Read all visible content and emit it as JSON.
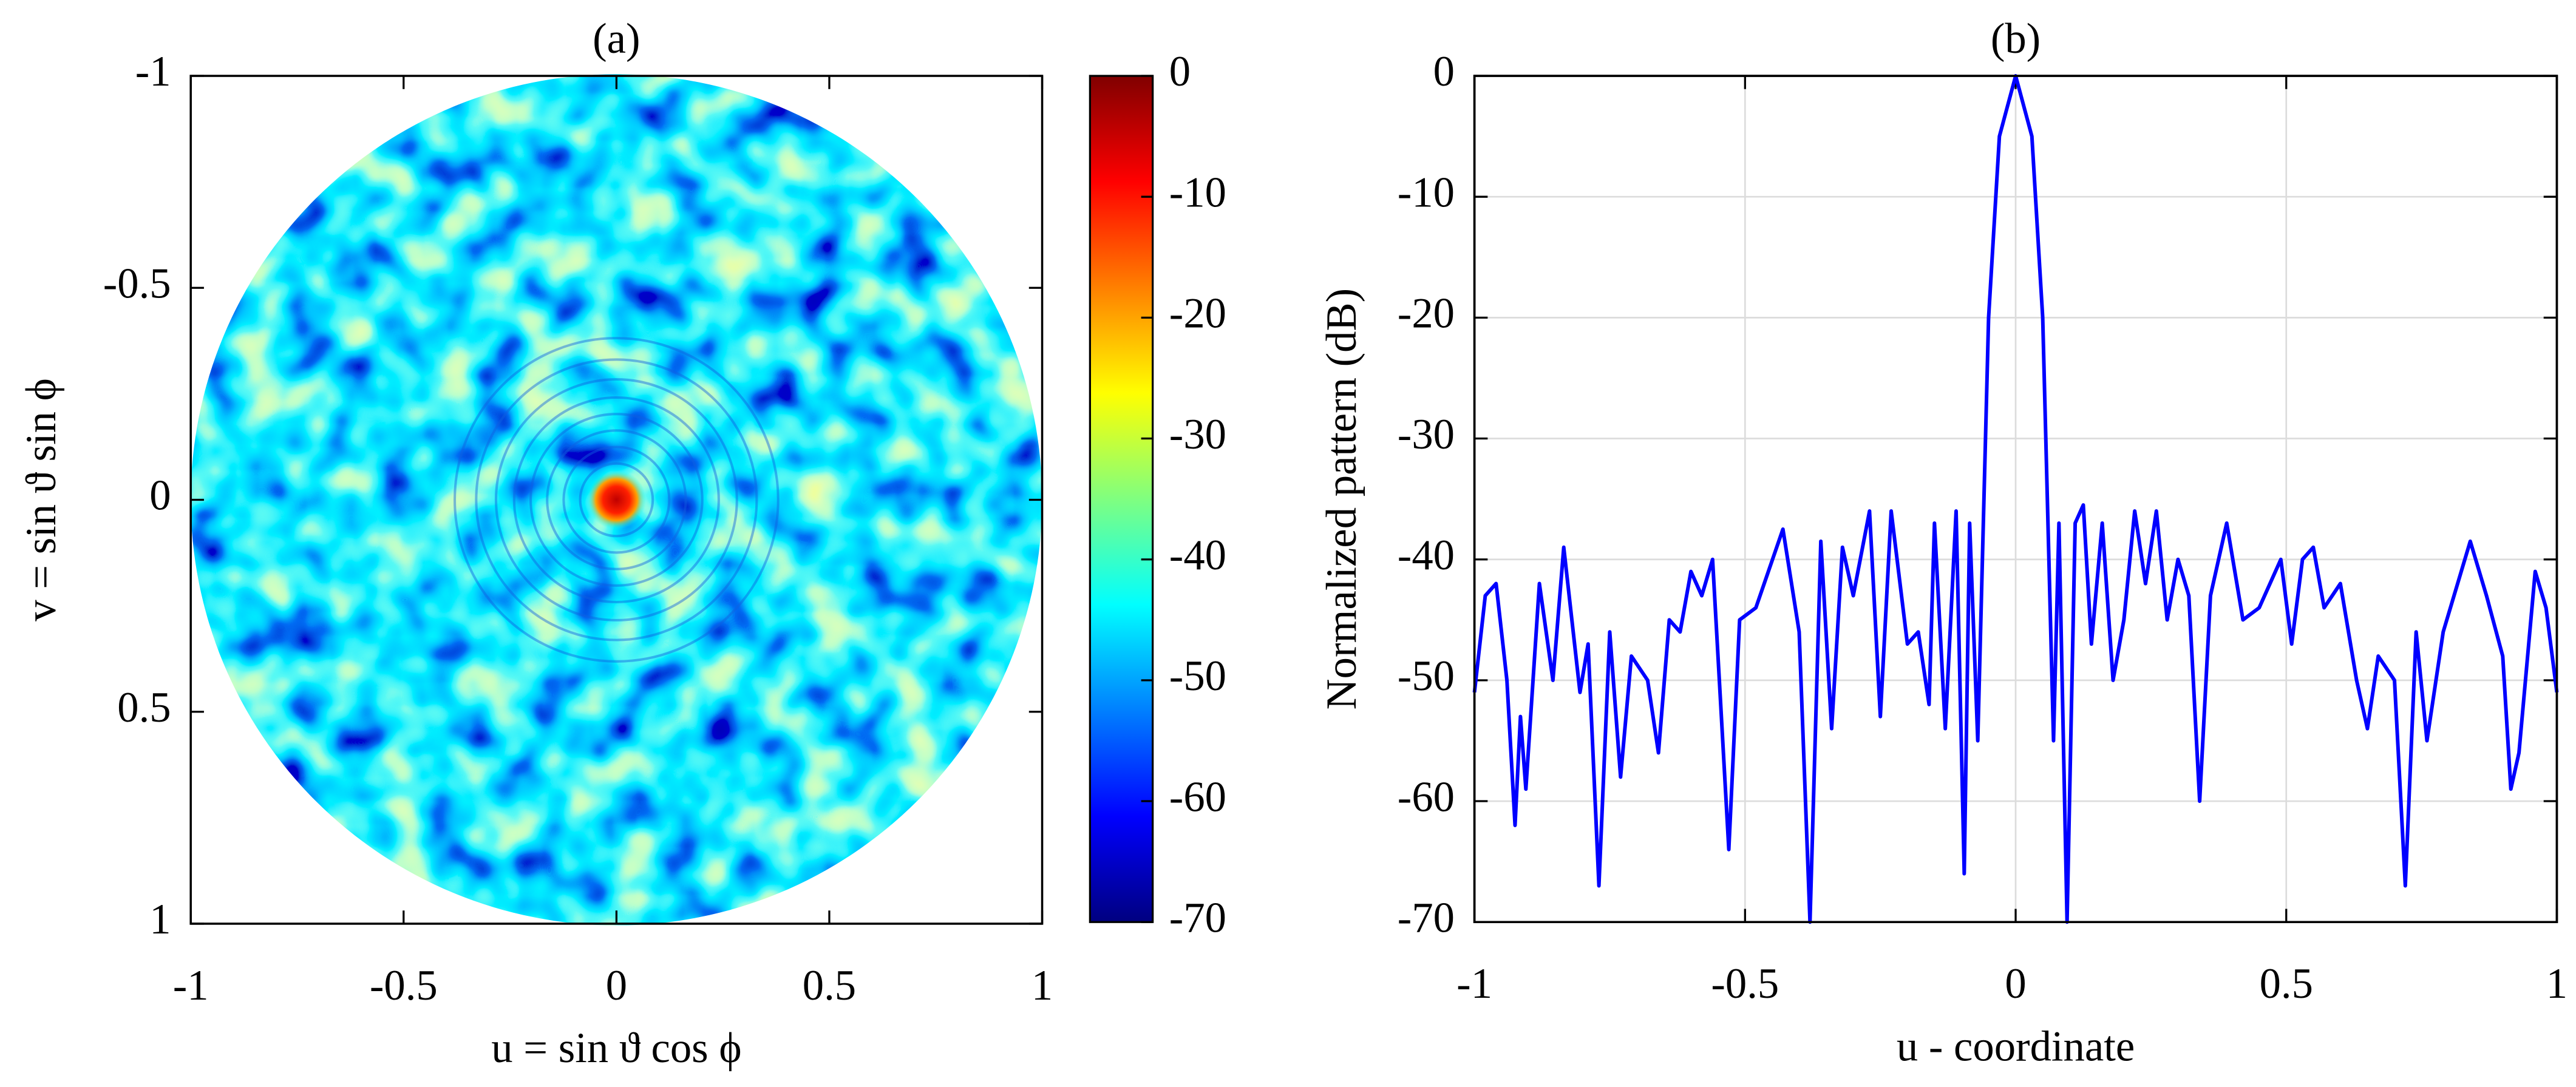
{
  "chart_data": [
    {
      "type": "heatmap",
      "title": "(a)",
      "xlabel": "u = sin ϑ cos ϕ",
      "ylabel": "v = sin ϑ sin ϕ",
      "xlim": [
        -1,
        1
      ],
      "xticks": [
        -1,
        -0.5,
        0,
        0.5,
        1
      ],
      "ylim": [
        -1,
        1
      ],
      "yticks": [
        -1,
        -0.5,
        0,
        0.5,
        1
      ],
      "ydir": "reverse",
      "colormap": "jet",
      "clim": [
        -70,
        0
      ],
      "cticks": [
        0,
        -10,
        -20,
        -30,
        -40,
        -50,
        -60,
        -70
      ]
    },
    {
      "type": "line",
      "title": "(b)",
      "xlabel": "u - coordinate",
      "ylabel": "Normalized pattern (dB)",
      "xlim": [
        -1,
        1
      ],
      "xticks": [
        -1,
        -0.5,
        0,
        0.5,
        1
      ],
      "ylim": [
        -70,
        0
      ],
      "yticks": [
        0,
        -10,
        -20,
        -30,
        -40,
        -50,
        -60,
        -70
      ],
      "grid": true,
      "color": "#0000ff",
      "x": [
        -1,
        -0.98,
        -0.96,
        -0.94,
        -0.925,
        -0.915,
        -0.905,
        -0.88,
        -0.855,
        -0.835,
        -0.805,
        -0.79,
        -0.77,
        -0.75,
        -0.73,
        -0.71,
        -0.68,
        -0.66,
        -0.64,
        -0.62,
        -0.6,
        -0.58,
        -0.56,
        -0.53,
        -0.51,
        -0.48,
        -0.43,
        -0.4,
        -0.38,
        -0.36,
        -0.34,
        -0.32,
        -0.3,
        -0.27,
        -0.25,
        -0.23,
        -0.2,
        -0.18,
        -0.16,
        -0.15,
        -0.13,
        -0.11,
        -0.095,
        -0.085,
        -0.07,
        -0.05,
        -0.03,
        0,
        0.03,
        0.05,
        0.07,
        0.08,
        0.095,
        0.11,
        0.125,
        0.14,
        0.16,
        0.18,
        0.2,
        0.22,
        0.24,
        0.26,
        0.28,
        0.3,
        0.32,
        0.34,
        0.36,
        0.39,
        0.42,
        0.45,
        0.49,
        0.51,
        0.53,
        0.55,
        0.57,
        0.6,
        0.63,
        0.65,
        0.67,
        0.7,
        0.72,
        0.74,
        0.76,
        0.79,
        0.81,
        0.84,
        0.87,
        0.9,
        0.915,
        0.93,
        0.96,
        0.98,
        1
      ],
      "values": [
        -51,
        -43,
        -42,
        -50,
        -62,
        -53,
        -59,
        -42,
        -50,
        -39,
        -51,
        -47,
        -67,
        -46,
        -58,
        -48,
        -50,
        -56,
        -45,
        -46,
        -41,
        -43,
        -40,
        -64,
        -45,
        -44,
        -37.5,
        -46,
        -70,
        -38.5,
        -54,
        -39,
        -43,
        -36,
        -53,
        -36,
        -47,
        -46,
        -52,
        -37,
        -54,
        -36,
        -66,
        -37,
        -55,
        -20,
        -5,
        0,
        -5,
        -20,
        -55,
        -37,
        -70,
        -37,
        -35.5,
        -47,
        -37,
        -50,
        -45,
        -36,
        -42,
        -36,
        -45,
        -40,
        -43,
        -60,
        -43,
        -37,
        -45,
        -44,
        -40,
        -47,
        -40,
        -39,
        -44,
        -42,
        -50,
        -54,
        -48,
        -50,
        -67,
        -46,
        -55,
        -46,
        -43,
        -38.5,
        -43,
        -48,
        -59,
        -56,
        -41,
        -44,
        -51
      ]
    }
  ]
}
